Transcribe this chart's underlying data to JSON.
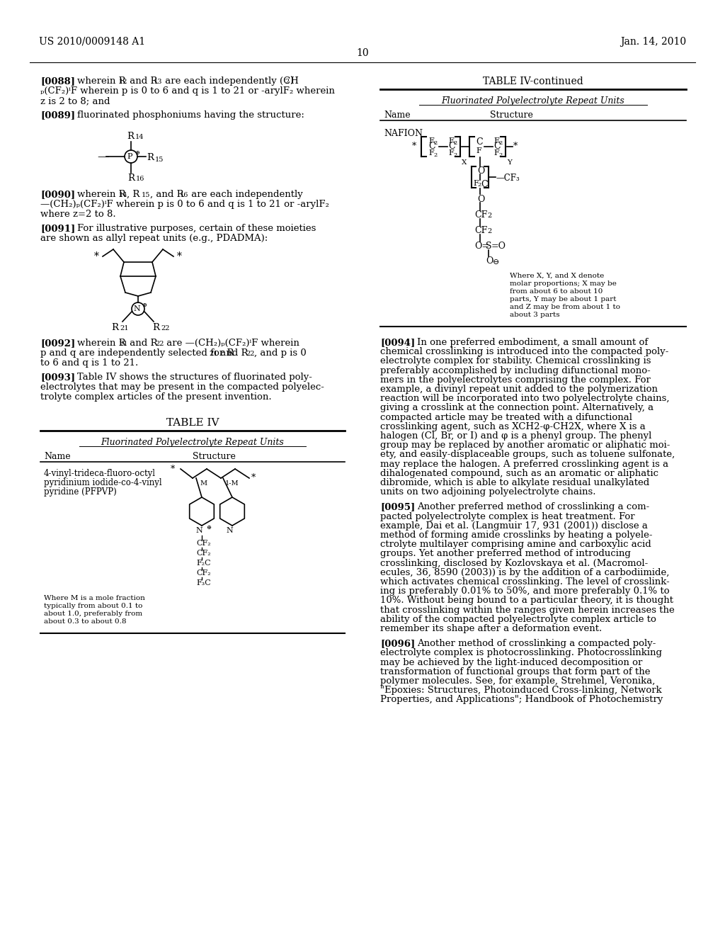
{
  "page_number": "10",
  "header_left": "US 2010/0009148 A1",
  "header_right": "Jan. 14, 2010",
  "background_color": "#ffffff",
  "text_color": "#000000",
  "font_size_body": 9.5,
  "font_size_header": 10,
  "table_iv_title": "TABLE IV",
  "table_iv_continued_title": "TABLE IV-continued",
  "table_subtitle": "Fluorinated Polyelectrolyte Repeat Units",
  "table_col1": "Name",
  "table_col2": "Structure",
  "table_row1_name_line1": "4-vinyl-trideca-fluoro-octyl",
  "table_row1_name_line2": "pyridinium iodide-co-4-vinyl",
  "table_row1_name_line3": "pyridine (PFPVP)",
  "table_nafion_name": "NAFION",
  "nafion_caption_lines": [
    "Where X, Y, and X denote",
    "molar proportions; X may be",
    "from about 6 to about 10",
    "parts, Y may be about 1 part",
    "and Z may be from about 1 to",
    "about 3 parts"
  ],
  "pfpvp_caption_lines": [
    "Where M is a mole fraction",
    "typically from about 0.1 to",
    "about 1.0, preferably from",
    "about 0.3 to about 0.8"
  ],
  "p88_lines": [
    "wherein R",
    "12",
    " and R",
    "13",
    " are each independently (CH",
    "2",
    ")",
    "p(CF2)qF wherein p is 0 to 6 and q is 1 to 21 or -arylFz wherein",
    "z is 2 to 8; and"
  ],
  "p89_text": "fluorinated phosphoniums having the structure:",
  "p90_lines": [
    "wherein R14, R15, and R16 are each independently",
    "—(CH2)p(CF2)qF wherein p is 0 to 6 and q is 1 to 21 or -arylFz",
    "where z=2 to 8."
  ],
  "p91_lines": [
    "For illustrative purposes, certain of these moieties",
    "are shown as allyl repeat units (e.g., PDADMA):"
  ],
  "p92_lines": [
    "wherein R21 and R22 are —(CH2)p(CF2)qF wherein",
    "p and q are independently selected for R21 and R22, and p is 0",
    "to 6 and q is 1 to 21."
  ],
  "p93_lines": [
    "Table IV shows the structures of fluorinated poly-",
    "electrolytes that may be present in the compacted polyelec-",
    "trolyte complex articles of the present invention."
  ],
  "p94_lines": [
    "In one preferred embodiment, a small amount of",
    "chemical crosslinking is introduced into the compacted poly-",
    "electrolyte complex for stability. Chemical crosslinking is",
    "preferably accomplished by including difunctional mono-",
    "mers in the polyelectrolytes comprising the complex. For",
    "example, a divinyl repeat unit added to the polymerization",
    "reaction will be incorporated into two polyelectrolyte chains,",
    "giving a crosslink at the connection point. Alternatively, a",
    "compacted article may be treated with a difunctional",
    "crosslinking agent, such as XCH2-φ-CH2X, where X is a",
    "halogen (Cl, Br, or I) and φ is a phenyl group. The phenyl",
    "group may be replaced by another aromatic or aliphatic moi-",
    "ety, and easily-displaceable groups, such as toluene sulfonate,",
    "may replace the halogen. A preferred crosslinking agent is a",
    "dihalogenated compound, such as an aromatic or aliphatic",
    "dibromide, which is able to alkylate residual unalkylated",
    "units on two adjoining polyelectrolyte chains."
  ],
  "p95_lines": [
    "Another preferred method of crosslinking a com-",
    "pacted polyelectrolyte complex is heat treatment. For",
    "example, Dai et al. (Langmuir 17, 931 (2001)) disclose a",
    "method of forming amide crosslinks by heating a polyele-",
    "ctrolyte multilayer comprising amine and carboxylic acid",
    "groups. Yet another preferred method of introducing",
    "crosslinking, disclosed by Kozlovskaya et al. (Macromol-",
    "ecules, 36, 8590 (2003)) is by the addition of a carbodiimide,",
    "which activates chemical crosslinking. The level of crosslink-",
    "ing is preferably 0.01% to 50%, and more preferably 0.1% to",
    "10%. Without being bound to a particular theory, it is thought",
    "that crosslinking within the ranges given herein increases the",
    "ability of the compacted polyelectrolyte complex article to",
    "remember its shape after a deformation event."
  ],
  "p96_lines": [
    "Another method of crosslinking a compacted poly-",
    "electrolyte complex is photocrosslinking. Photocrosslinking",
    "may be achieved by the light-induced decomposition or",
    "transformation of functional groups that form part of the",
    "polymer molecules. See, for example, Strehmel, Veronika,",
    "\"Epoxies: Structures, Photoinduced Cross-linking, Network",
    "Properties, and Applications\"; Handbook of Photochemistry"
  ]
}
